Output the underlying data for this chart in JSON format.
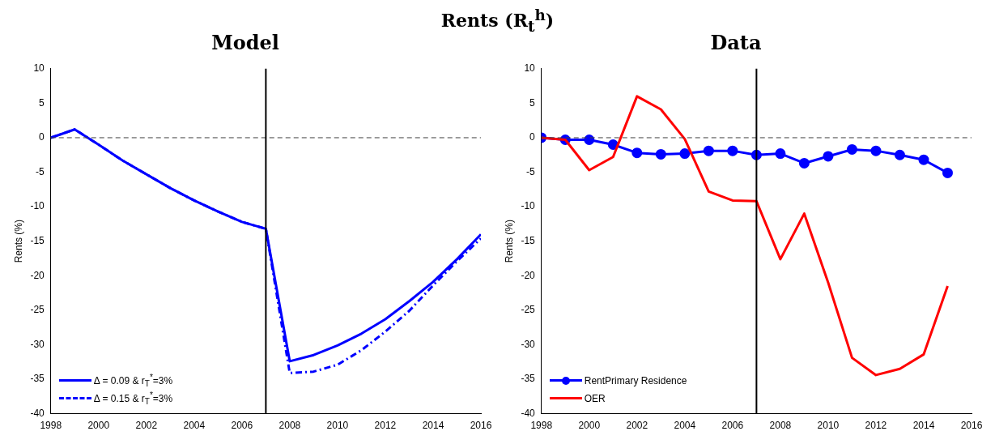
{
  "chart_data": [
    {
      "type": "line",
      "title": "Model",
      "ylabel": "Rents (%)",
      "annotations": [
        "Rents (R$_{t}$$^{h}$)"
      ],
      "x": [
        1998,
        1999,
        2000,
        2001,
        2002,
        2003,
        2004,
        2005,
        2006,
        2007,
        2008,
        2009,
        2010,
        2011,
        2012,
        2013,
        2014,
        2015,
        2016
      ],
      "series": [
        {
          "name": "Δ = 0.09 & r$_{T}$$^{*}$=3%",
          "color": "#0000ff",
          "line_style": "solid",
          "marker": "none",
          "values": [
            0,
            1.2,
            -1.0,
            -3.3,
            -5.3,
            -7.3,
            -9.1,
            -10.7,
            -12.2,
            -13.2,
            -32.4,
            -31.5,
            -30.1,
            -28.4,
            -26.3,
            -23.7,
            -20.9,
            -17.6,
            -14.0
          ]
        },
        {
          "name": "Δ = 0.15 & r$_{T}$$^{*}$=3%",
          "color": "#0000ff",
          "line_style": "dashed",
          "marker": "none",
          "values": [
            0,
            1.2,
            -1.0,
            -3.3,
            -5.3,
            -7.3,
            -9.1,
            -10.7,
            -12.2,
            -13.2,
            -34.1,
            -33.9,
            -32.9,
            -30.8,
            -28.1,
            -25.1,
            -21.4,
            -17.9,
            -14.6
          ]
        }
      ],
      "xlim": [
        1998,
        2016
      ],
      "xticks": [
        1998,
        2000,
        2002,
        2004,
        2006,
        2008,
        2010,
        2012,
        2014,
        2016
      ],
      "ylim": [
        -40,
        10
      ],
      "yticks": [
        -40,
        -35,
        -30,
        -25,
        -20,
        -15,
        -10,
        -5,
        0,
        5,
        10
      ],
      "ref_lines": [
        {
          "axis": "y",
          "value": 0,
          "color": "#404040",
          "line_style": "dashed"
        },
        {
          "axis": "x",
          "value": 2007,
          "color": "#000000",
          "line_style": "solid"
        }
      ],
      "grid": false,
      "legend": "bottom left"
    },
    {
      "type": "line",
      "title": "Data",
      "ylabel": "Rents (%)",
      "x": [
        1998,
        1999,
        2000,
        2001,
        2002,
        2003,
        2004,
        2005,
        2006,
        2007,
        2008,
        2009,
        2010,
        2011,
        2012,
        2013,
        2014,
        2015
      ],
      "series": [
        {
          "name": "RentPrimary Residence",
          "color": "#0000ff",
          "line_style": "solid",
          "marker": "circle",
          "values": [
            0,
            -0.3,
            -0.3,
            -1.0,
            -2.2,
            -2.4,
            -2.3,
            -1.9,
            -1.9,
            -2.5,
            -2.3,
            -3.7,
            -2.7,
            -1.7,
            -1.9,
            -2.5,
            -3.2,
            -5.1
          ]
        },
        {
          "name": "OER",
          "color": "#ff0000",
          "line_style": "solid",
          "marker": "none",
          "values": [
            0,
            -0.3,
            -4.7,
            -2.8,
            6.0,
            4.1,
            -0.2,
            -7.8,
            -9.1,
            -9.2,
            -17.6,
            -11.0,
            -21.0,
            -31.9,
            -34.4,
            -33.5,
            -31.4,
            -21.5
          ]
        }
      ],
      "xlim": [
        1998,
        2016
      ],
      "xticks": [
        1998,
        2000,
        2002,
        2004,
        2006,
        2008,
        2010,
        2012,
        2014,
        2016
      ],
      "ylim": [
        -40,
        10
      ],
      "yticks": [
        -40,
        -35,
        -30,
        -25,
        -20,
        -15,
        -10,
        -5,
        0,
        5,
        10
      ],
      "ref_lines": [
        {
          "axis": "y",
          "value": 0,
          "color": "#404040",
          "line_style": "dashed"
        },
        {
          "axis": "x",
          "value": 2007,
          "color": "#000000",
          "line_style": "solid"
        }
      ],
      "grid": false,
      "legend": "bottom left"
    }
  ]
}
